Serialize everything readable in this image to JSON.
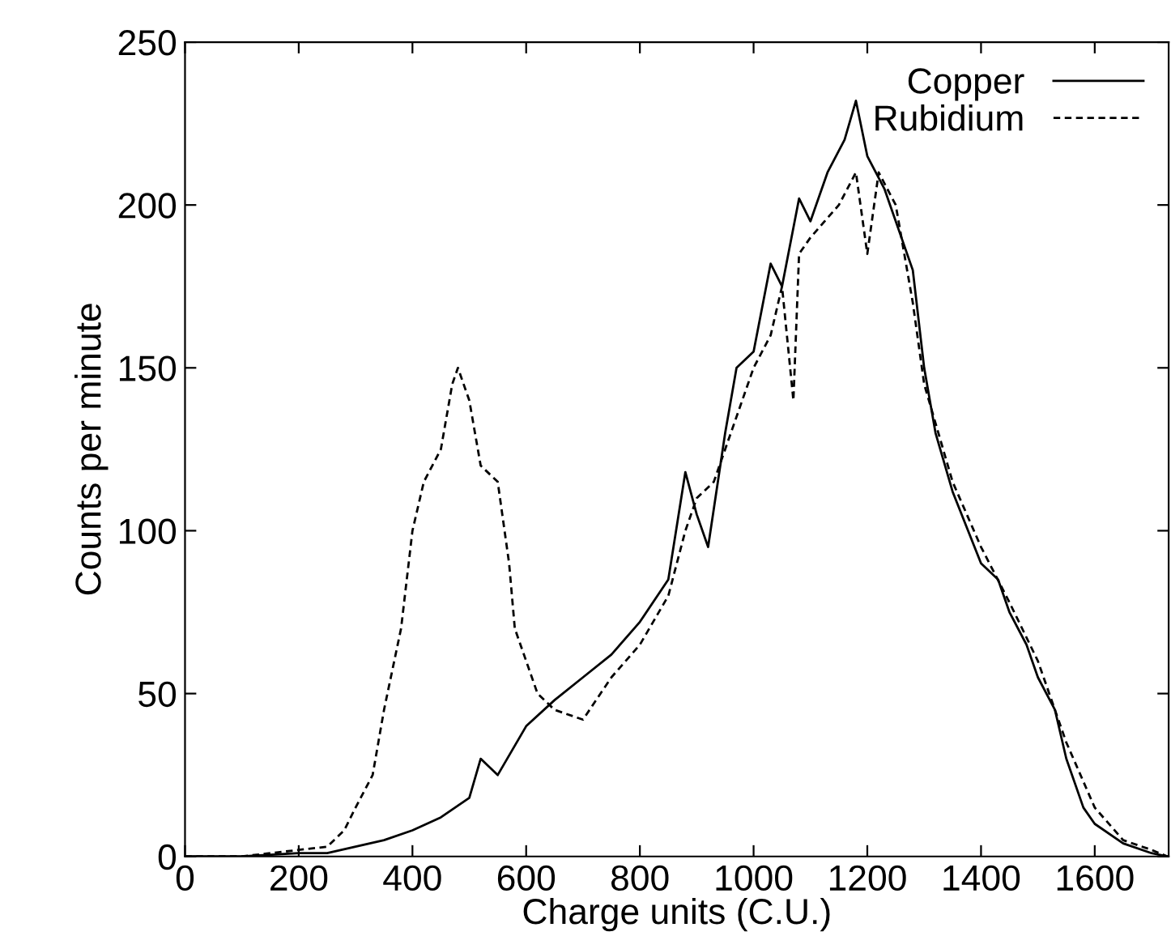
{
  "chart_data": {
    "type": "line",
    "xlabel": "Charge units (C.U.)",
    "ylabel": "Counts per minute",
    "xlim": [
      0,
      1730
    ],
    "ylim": [
      0,
      250
    ],
    "xticks": [
      0,
      200,
      400,
      600,
      800,
      1000,
      1200,
      1400,
      1600
    ],
    "yticks": [
      0,
      50,
      100,
      150,
      200,
      250
    ],
    "grid": false,
    "legend": "top right",
    "marker": "none",
    "series": [
      {
        "name": "Copper",
        "color": "#000000",
        "line_style": "solid",
        "x": [
          0,
          100,
          200,
          250,
          300,
          350,
          400,
          450,
          500,
          520,
          550,
          600,
          650,
          700,
          750,
          800,
          850,
          880,
          900,
          920,
          950,
          970,
          1000,
          1030,
          1050,
          1080,
          1100,
          1130,
          1160,
          1180,
          1200,
          1230,
          1260,
          1280,
          1300,
          1320,
          1350,
          1400,
          1430,
          1450,
          1480,
          1500,
          1530,
          1550,
          1580,
          1600,
          1650,
          1700,
          1728
        ],
        "values": [
          0,
          0,
          1,
          1,
          3,
          5,
          8,
          12,
          18,
          30,
          25,
          40,
          48,
          55,
          62,
          72,
          85,
          118,
          105,
          95,
          130,
          150,
          155,
          182,
          175,
          202,
          195,
          210,
          220,
          232,
          215,
          205,
          190,
          180,
          150,
          130,
          112,
          90,
          85,
          75,
          65,
          55,
          45,
          30,
          15,
          10,
          4,
          1,
          0
        ]
      },
      {
        "name": "Rubidium",
        "color": "#000000",
        "line_style": "dashed",
        "x": [
          0,
          100,
          200,
          250,
          280,
          300,
          330,
          350,
          380,
          400,
          420,
          450,
          470,
          480,
          500,
          520,
          550,
          570,
          580,
          600,
          620,
          650,
          700,
          750,
          800,
          850,
          880,
          900,
          930,
          960,
          1000,
          1030,
          1050,
          1070,
          1080,
          1100,
          1150,
          1180,
          1200,
          1220,
          1250,
          1280,
          1300,
          1350,
          1400,
          1450,
          1500,
          1550,
          1600,
          1650,
          1700,
          1728
        ],
        "values": [
          0,
          0,
          2,
          3,
          8,
          15,
          25,
          45,
          70,
          100,
          115,
          125,
          145,
          150,
          140,
          120,
          115,
          90,
          70,
          60,
          50,
          45,
          42,
          55,
          65,
          80,
          100,
          110,
          115,
          130,
          150,
          160,
          175,
          140,
          185,
          190,
          200,
          210,
          185,
          210,
          200,
          170,
          145,
          115,
          95,
          78,
          60,
          35,
          15,
          5,
          2,
          0
        ]
      }
    ]
  }
}
